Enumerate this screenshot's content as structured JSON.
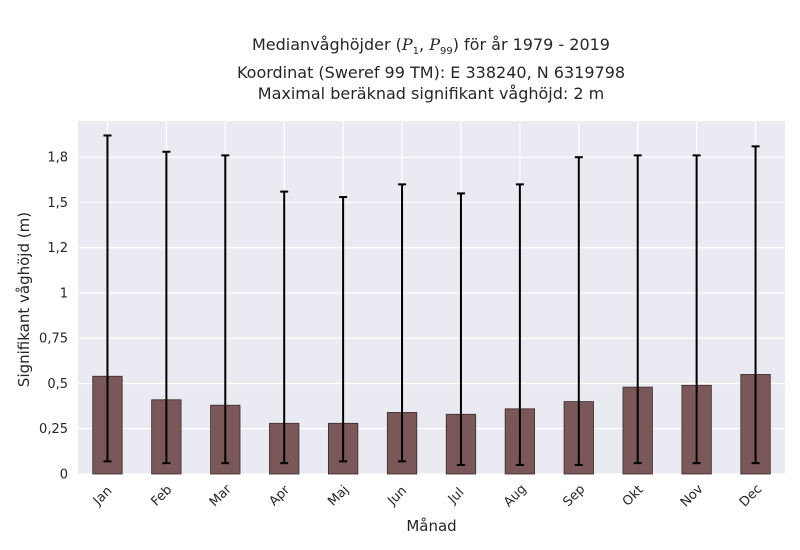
{
  "chart_data": {
    "type": "bar",
    "title_lines": [
      "Medianvåghöjder (P1, P99) för år 1979 - 2019",
      "Koordinat (Sweref 99 TM): E 338240, N 6319798",
      "Maximal beräknad signifikant våghöjd: 2 m"
    ],
    "title_parts": {
      "prefix": "Medianvåghöjder (",
      "p1": "P",
      "p1_sub": "1",
      "sep": ", ",
      "p99": "P",
      "p99_sub": "99",
      "suffix": ") för år 1979 - 2019"
    },
    "xlabel": "Månad",
    "ylabel": "Signifikant våghöjd (m)",
    "categories": [
      "Jan",
      "Feb",
      "Mar",
      "Apr",
      "Maj",
      "Jun",
      "Jul",
      "Aug",
      "Sep",
      "Okt",
      "Nov",
      "Dec"
    ],
    "values": [
      0.54,
      0.41,
      0.38,
      0.28,
      0.28,
      0.34,
      0.33,
      0.36,
      0.4,
      0.48,
      0.49,
      0.55
    ],
    "p1": [
      0.07,
      0.06,
      0.06,
      0.06,
      0.07,
      0.07,
      0.05,
      0.05,
      0.05,
      0.06,
      0.06,
      0.06
    ],
    "p99": [
      1.87,
      1.78,
      1.76,
      1.56,
      1.53,
      1.6,
      1.55,
      1.6,
      1.75,
      1.76,
      1.76,
      1.81
    ],
    "ylim": [
      0,
      1.95
    ],
    "yticks": [
      0,
      0.25,
      0.5,
      0.75,
      1,
      1.25,
      1.5,
      1.75
    ],
    "ytick_labels": [
      "0",
      "0,25",
      "0,5",
      "0,75",
      "1",
      "1,2",
      "1,5",
      "1,8"
    ],
    "grid": true,
    "colors": {
      "bar": "#7a5759",
      "bar_edge": "#3a2a2a",
      "errorbar": "#000000",
      "plot_background": "#eaeaf2",
      "grid": "#ffffff"
    }
  }
}
